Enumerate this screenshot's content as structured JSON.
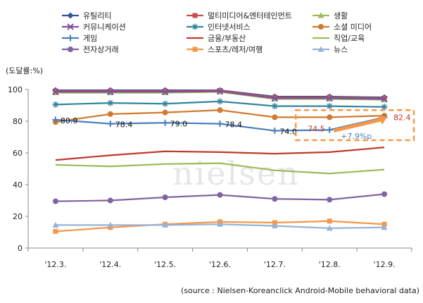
{
  "chart_data": {
    "type": "line",
    "unit_label": "(도달률:%)",
    "categories": [
      "'12.3.",
      "'12.4.",
      "'12.5.",
      "'12.6.",
      "'12.7.",
      "'12.8.",
      "'12.9."
    ],
    "ylim": [
      0,
      100
    ],
    "y_ticks": [
      "0",
      "20",
      "40",
      "60",
      "80",
      "100"
    ],
    "legend_position": "top",
    "series": [
      {
        "name": "유틸리티",
        "color": "#2F5597",
        "marker": "diamond",
        "values": [
          99.5,
          99.5,
          99.5,
          99.5,
          95.5,
          95.5,
          95.0
        ]
      },
      {
        "name": "멀티미디어&엔터테인먼트",
        "color": "#C0504D",
        "marker": "square",
        "values": [
          99.0,
          99.0,
          99.0,
          99.3,
          95.0,
          95.0,
          94.5
        ]
      },
      {
        "name": "생활",
        "color": "#9BBB59",
        "marker": "triangle",
        "values": [
          98.0,
          98.0,
          98.0,
          98.5,
          94.0,
          94.0,
          93.5
        ]
      },
      {
        "name": "커뮤니케이션",
        "color": "#7F4F9F",
        "marker": "x",
        "values": [
          98.5,
          98.5,
          98.5,
          98.8,
          94.5,
          94.5,
          94.0
        ]
      },
      {
        "name": "인터넷서비스",
        "color": "#31859C",
        "marker": "star",
        "values": [
          90.5,
          91.5,
          91.0,
          92.5,
          89.5,
          89.5,
          89.0
        ]
      },
      {
        "name": "소셜 미디어",
        "color": "#D07A2E",
        "marker": "circle",
        "values": [
          79.5,
          84.5,
          85.5,
          87.0,
          82.5,
          82.5,
          83.5
        ]
      },
      {
        "name": "게임",
        "color": "#4A7EBB",
        "marker": "plus",
        "values": [
          80.9,
          78.4,
          79.0,
          78.4,
          74.0,
          74.5,
          82.4
        ]
      },
      {
        "name": "금융/부동산",
        "color": "#C0392B",
        "marker": "none",
        "values": [
          55.5,
          58.5,
          61.0,
          60.5,
          59.5,
          60.5,
          63.5
        ]
      },
      {
        "name": "직업/교육",
        "color": "#9BBB59",
        "marker": "none",
        "values": [
          52.5,
          51.5,
          53.0,
          53.5,
          49.0,
          47.0,
          49.5
        ]
      },
      {
        "name": "전자상거래",
        "color": "#8064A2",
        "marker": "circle",
        "values": [
          29.5,
          30.0,
          32.0,
          33.5,
          31.0,
          30.5,
          34.0
        ]
      },
      {
        "name": "스포츠/레저/여행",
        "color": "#F79646",
        "marker": "square",
        "values": [
          10.5,
          13.0,
          15.0,
          16.5,
          16.0,
          17.0,
          15.0
        ]
      },
      {
        "name": "뉴스",
        "color": "#95B3D7",
        "marker": "triangle",
        "values": [
          14.5,
          14.5,
          14.5,
          15.0,
          14.0,
          12.5,
          13.0
        ]
      }
    ],
    "game_labels": [
      "80.9",
      "78.4",
      "79.0",
      "78.4",
      "74.0",
      "74.5",
      "82.4"
    ],
    "growth_annotation": "+7.9%p",
    "watermark": "nielsen",
    "source": "(source : Nielsen-Koreanclick  Android-Mobile behavioral data)"
  }
}
